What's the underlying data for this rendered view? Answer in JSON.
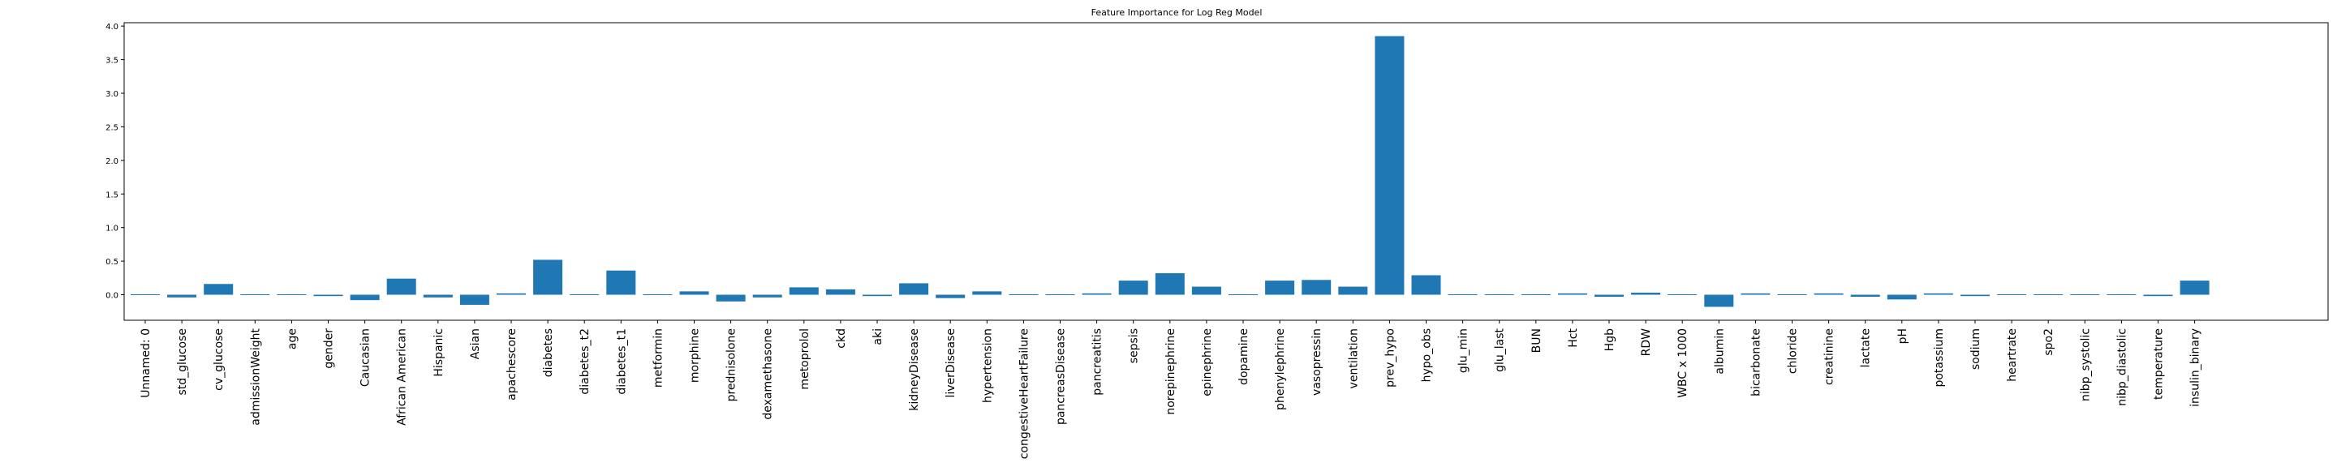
{
  "chart_data": {
    "type": "bar",
    "title": "Feature Importance for Log Reg Model",
    "xlabel": "",
    "ylabel": "",
    "ylim": [
      -0.38,
      4.05
    ],
    "yticks": [
      0.0,
      0.5,
      1.0,
      1.5,
      2.0,
      2.5,
      3.0,
      3.5,
      4.0
    ],
    "ytick_labels": [
      "0.0",
      "0.5",
      "1.0",
      "1.5",
      "2.0",
      "2.5",
      "3.0",
      "3.5",
      "4.0"
    ],
    "grid": false,
    "bar_color": "#1f77b4",
    "categories": [
      "Unnamed: 0",
      "std_glucose",
      "cv_glucose",
      "admissionWeight",
      "age",
      "gender",
      "Caucasian",
      "African American",
      "Hispanic",
      "Asian",
      "apachescore",
      "diabetes",
      "diabetes_t2",
      "diabetes_t1",
      "metformin",
      "morphine",
      "prednisolone",
      "dexamethasone",
      "metoprolol",
      "ckd",
      "aki",
      "kidneyDisease",
      "liverDisease",
      "hypertension",
      "congestiveHeartFailure",
      "pancreasDisease",
      "pancreatitis",
      "sepsis",
      "norepinephrine",
      "epinephrine",
      "dopamine",
      "phenylephrine",
      "vasopressin",
      "ventilation",
      "prev_hypo",
      "hypo_obs",
      "glu_min",
      "glu_last",
      "BUN",
      "Hct",
      "Hgb",
      "RDW",
      "WBC x 1000",
      "albumin",
      "bicarbonate",
      "chloride",
      "creatinine",
      "lactate",
      "pH",
      "potassium",
      "sodium",
      "heartrate",
      "spo2",
      "nibp_systolic",
      "nibp_diastolic",
      "temperature",
      "insulin_binary"
    ],
    "values": [
      0.0,
      -0.04,
      0.16,
      0.0,
      0.0,
      -0.02,
      -0.08,
      0.24,
      -0.04,
      -0.15,
      0.02,
      0.52,
      0.0,
      0.36,
      0.0,
      0.05,
      -0.1,
      -0.04,
      0.11,
      0.08,
      -0.02,
      0.17,
      -0.05,
      0.05,
      0.0,
      0.0,
      0.02,
      0.21,
      0.32,
      0.12,
      0.0,
      0.21,
      0.22,
      0.12,
      3.85,
      0.29,
      0.0,
      0.0,
      0.0,
      0.02,
      -0.03,
      0.03,
      0.0,
      -0.18,
      0.02,
      0.0,
      0.02,
      -0.03,
      -0.07,
      0.02,
      -0.02,
      0.0,
      0.0,
      0.0,
      0.0,
      -0.02,
      0.21
    ]
  }
}
